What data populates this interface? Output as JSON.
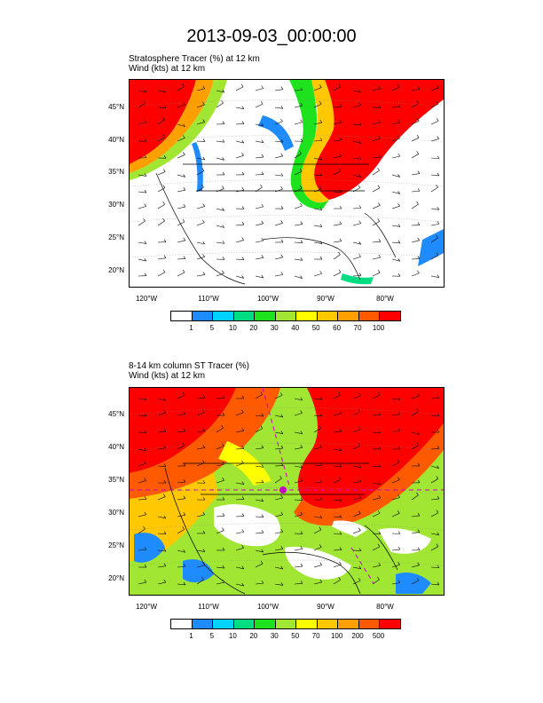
{
  "title": "2013-09-03_00:00:00",
  "panels": [
    {
      "title_lines": [
        "Stratosphere Tracer   (%)     at    12 km",
        "Wind    (kts)      at    12 km"
      ],
      "lat_labels": [
        "45°N",
        "40°N",
        "35°N",
        "30°N",
        "25°N",
        "20°N"
      ],
      "lon_labels": [
        "120°W",
        "110°W",
        "100°W",
        "90°W",
        "80°W"
      ],
      "colorbar_labels": [
        "1",
        "5",
        "10",
        "20",
        "30",
        "40",
        "50",
        "60",
        "70",
        "100"
      ]
    },
    {
      "title_lines": [
        "8-14 km column ST Tracer   (%)",
        "Wind    (kts)      at    12 km"
      ],
      "lat_labels": [
        "45°N",
        "40°N",
        "35°N",
        "30°N",
        "25°N",
        "20°N"
      ],
      "lon_labels": [
        "120°W",
        "110°W",
        "100°W",
        "90°W",
        "80°W"
      ],
      "colorbar_labels": [
        "1",
        "5",
        "10",
        "20",
        "30",
        "50",
        "70",
        "100",
        "200",
        "500"
      ]
    }
  ],
  "colorbar_colors": [
    "#ffffff",
    "#1e8cff",
    "#00d2ff",
    "#00dc82",
    "#1ee21e",
    "#a0e632",
    "#ffff00",
    "#ffc800",
    "#ffa000",
    "#ff5a00",
    "#ff0000"
  ],
  "map_colors": {
    "land_outline": "#000000",
    "wind_barb": "#000000",
    "marker": "#c800c8"
  }
}
